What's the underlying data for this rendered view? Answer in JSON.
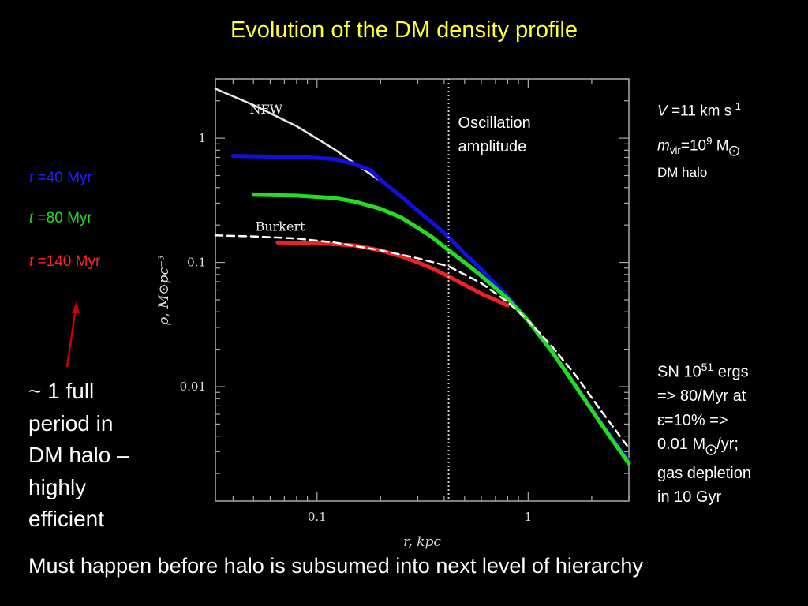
{
  "title": "Evolution of the DM density profile",
  "chart_data": {
    "type": "line",
    "xlabel": "r, kpc",
    "ylabel": "ρ, M⊙pc⁻³",
    "xscale": "log",
    "yscale": "log",
    "xlim": [
      0.033,
      3.0
    ],
    "ylim": [
      0.0012,
      3.0
    ],
    "x_ticks": [
      {
        "value": 0.1,
        "label": "0.1"
      },
      {
        "value": 1,
        "label": "1"
      }
    ],
    "y_ticks": [
      {
        "value": 0.01,
        "label": "0.01"
      },
      {
        "value": 0.1,
        "label": "0.1"
      },
      {
        "value": 1,
        "label": "1"
      }
    ],
    "vline": {
      "x": 0.42,
      "label_line1": "Oscillation",
      "label_line2": "amplitude"
    },
    "series": [
      {
        "name": "NFW",
        "color": "#e8e8e8",
        "dash": false,
        "x": [
          0.033,
          0.05,
          0.08,
          0.12,
          0.2,
          0.3,
          0.42,
          0.6,
          0.8,
          1.0,
          1.3,
          1.7,
          2.2,
          3.0
        ],
        "y": [
          2.5,
          1.85,
          1.25,
          0.82,
          0.45,
          0.265,
          0.16,
          0.088,
          0.053,
          0.034,
          0.019,
          0.01,
          0.0052,
          0.0025
        ]
      },
      {
        "name": "Burkert",
        "color": "#ffffff",
        "dash": true,
        "x": [
          0.033,
          0.05,
          0.08,
          0.12,
          0.2,
          0.3,
          0.42,
          0.6,
          0.8,
          1.0,
          1.3,
          1.7,
          2.2,
          3.0
        ],
        "y": [
          0.165,
          0.162,
          0.156,
          0.145,
          0.125,
          0.108,
          0.093,
          0.068,
          0.048,
          0.034,
          0.021,
          0.012,
          0.0065,
          0.0032
        ]
      },
      {
        "name": "t =40 Myr",
        "color": "#1010e0",
        "dash": false,
        "x": [
          0.04,
          0.06,
          0.09,
          0.12,
          0.15,
          0.18,
          0.2,
          0.25,
          0.3,
          0.35,
          0.42,
          0.5,
          0.6,
          0.8,
          1.0,
          1.3,
          1.7,
          2.2,
          3.0
        ],
        "y": [
          0.72,
          0.71,
          0.7,
          0.68,
          0.62,
          0.55,
          0.46,
          0.34,
          0.26,
          0.21,
          0.16,
          0.118,
          0.088,
          0.053,
          0.034,
          0.019,
          0.0098,
          0.0052,
          0.0025
        ]
      },
      {
        "name": "t =80 Myr",
        "color": "#22dd22",
        "dash": false,
        "x": [
          0.05,
          0.08,
          0.12,
          0.15,
          0.2,
          0.25,
          0.3,
          0.35,
          0.42,
          0.5,
          0.6,
          0.8,
          1.0,
          1.3,
          1.7,
          2.2,
          3.0
        ],
        "y": [
          0.35,
          0.345,
          0.33,
          0.31,
          0.27,
          0.23,
          0.19,
          0.16,
          0.125,
          0.1,
          0.078,
          0.051,
          0.034,
          0.019,
          0.0098,
          0.0051,
          0.0024
        ]
      },
      {
        "name": "t =140 Myr",
        "color": "#ee2222",
        "dash": false,
        "x": [
          0.065,
          0.1,
          0.15,
          0.2,
          0.25,
          0.3,
          0.35,
          0.42,
          0.5,
          0.6,
          0.7,
          0.8
        ],
        "y": [
          0.145,
          0.143,
          0.137,
          0.125,
          0.112,
          0.1,
          0.09,
          0.077,
          0.066,
          0.056,
          0.05,
          0.045
        ]
      }
    ],
    "curve_labels": [
      {
        "text": "NFW",
        "x": 0.048,
        "y": 1.58
      },
      {
        "text": "Burkert",
        "x": 0.051,
        "y": 0.18
      }
    ]
  },
  "legend": {
    "t40": {
      "var": "t",
      "text": " =40 Myr",
      "color": "#2020ff"
    },
    "t80": {
      "var": "t",
      "text": " =80 Myr",
      "color": "#22dd22"
    },
    "t140": {
      "var": "t",
      "text": " =140 Myr",
      "color": "#ff2222"
    }
  },
  "note_left": {
    "line1": "~ 1 full",
    "line2": "period in",
    "line3": "DM halo –",
    "line4": "highly",
    "line5": "efficient",
    "arrow_color": "#cc0000"
  },
  "note_right_top": {
    "v_var": "V",
    "v_text": " =11 km s",
    "v_sup": "-1",
    "m_var": "m",
    "m_sub": "vir",
    "m_text": "=10",
    "m_sup": "9",
    "m_unit": " M",
    "sun_symbol": "⨀",
    "halo": "DM halo"
  },
  "note_right_bottom": {
    "l1a": "SN 10",
    "l1sup": "51",
    "l1b": " ergs",
    "l2": "=> 80/Myr at",
    "l3": "ε=10% =>",
    "l4a": "0.01 M",
    "l4sun": "⨀",
    "l4b": "/yr;",
    "l5": "gas depletion",
    "l6": "in 10 Gyr"
  },
  "footer": "Must happen before halo is subsumed into next level of hierarchy"
}
